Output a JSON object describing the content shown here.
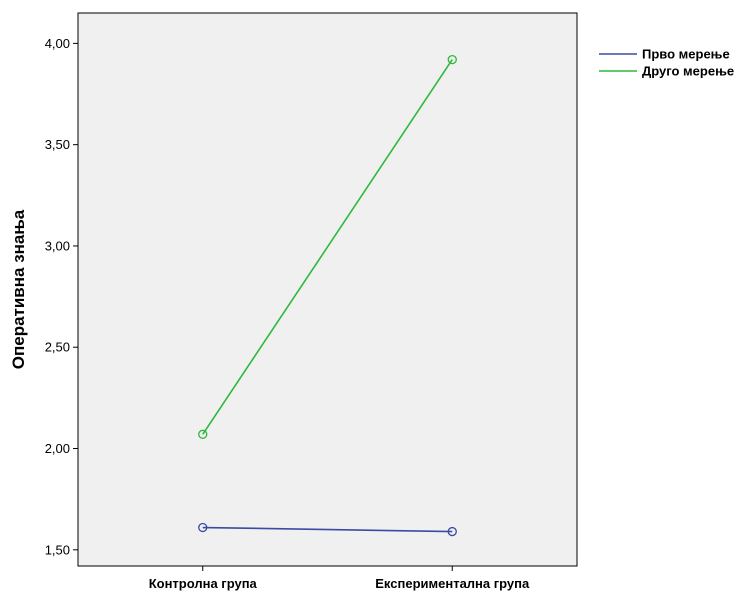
{
  "chart_data": {
    "type": "line",
    "title": "",
    "xlabel": "",
    "ylabel": "Оперативна знања",
    "categories": [
      "Контролна група",
      "Експериментална група"
    ],
    "series": [
      {
        "name": "Прво мерење",
        "values": [
          1.61,
          1.59
        ],
        "color": "#3b4ba3"
      },
      {
        "name": "Друго мерење",
        "values": [
          2.07,
          3.92
        ],
        "color": "#2db83d"
      }
    ],
    "ylim": [
      1.42,
      4.15
    ],
    "yticks": [
      1.5,
      2.0,
      2.5,
      3.0,
      3.5,
      4.0
    ],
    "ytick_labels": [
      "1,50",
      "2,00",
      "2,50",
      "3,00",
      "3,50",
      "4,00"
    ],
    "grid": false,
    "legend": "top-right",
    "plot_background": "#f0f0f0",
    "marker": "hollow-circle"
  }
}
